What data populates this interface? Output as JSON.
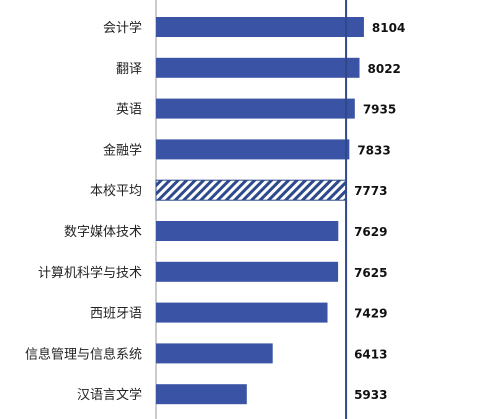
{
  "chart_data": {
    "type": "bar",
    "orientation": "horizontal",
    "categories": [
      "会计学",
      "翻译",
      "英语",
      "金融学",
      "本校平均",
      "数字媒体技术",
      "计算机科学与技术",
      "西班牙语",
      "信息管理与信息系统",
      "汉语言文学"
    ],
    "values": [
      8104,
      8022,
      7935,
      7833,
      7773,
      7629,
      7625,
      7429,
      6413,
      5933
    ],
    "highlight_category": "本校平均",
    "reference_line_value": 7773,
    "title": "",
    "xlabel": "",
    "ylabel": "",
    "xlim": [
      4250,
      8550
    ],
    "grid": false,
    "colors": {
      "bar": "#3A53A4",
      "highlight_hatch": "#2E4A8C",
      "reference_line": "#2E4A8C",
      "axis": "#999999"
    }
  }
}
